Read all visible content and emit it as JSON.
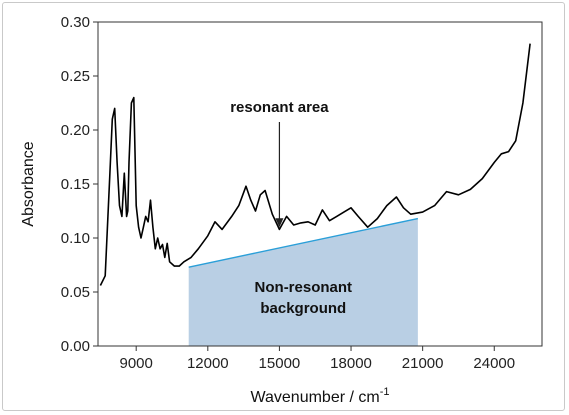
{
  "chart_data": {
    "type": "line",
    "title": "",
    "xlabel": "Wavenumber / cm",
    "xlabel_superscript": "-1",
    "ylabel": "Absorbance",
    "xlim": [
      7400,
      26000
    ],
    "ylim": [
      0,
      0.3
    ],
    "x_ticks": [
      9000,
      12000,
      15000,
      18000,
      21000,
      24000
    ],
    "x_tick_labels": [
      "9000",
      "12000",
      "15000",
      "18000",
      "21000",
      "24000"
    ],
    "y_ticks": [
      0,
      0.05,
      0.1,
      0.15,
      0.2,
      0.25,
      0.3
    ],
    "y_tick_labels": [
      "0.00",
      "0.05",
      "0.10",
      "0.15",
      "0.20",
      "0.25",
      "0.30"
    ],
    "grid": false,
    "series": [
      {
        "color": "#000000",
        "x": [
          7500,
          7700,
          7900,
          8000,
          8100,
          8200,
          8300,
          8400,
          8500,
          8600,
          8650,
          8700,
          8800,
          8900,
          8950,
          9000,
          9100,
          9200,
          9300,
          9400,
          9500,
          9600,
          9700,
          9800,
          9900,
          10000,
          10100,
          10200,
          10300,
          10400,
          10600,
          10800,
          11000,
          11300,
          11600,
          12000,
          12300,
          12600,
          13000,
          13300,
          13600,
          13800,
          14000,
          14200,
          14400,
          14700,
          15000,
          15300,
          15600,
          15900,
          16200,
          16500,
          16800,
          17100,
          17400,
          17700,
          18000,
          18300,
          18700,
          19100,
          19500,
          19900,
          20200,
          20500,
          21000,
          21500,
          22000,
          22500,
          23000,
          23500,
          24000,
          24300,
          24600,
          24900,
          25200,
          25500
        ],
        "y": [
          0.056,
          0.065,
          0.16,
          0.21,
          0.22,
          0.17,
          0.13,
          0.12,
          0.16,
          0.12,
          0.125,
          0.17,
          0.225,
          0.23,
          0.18,
          0.13,
          0.11,
          0.1,
          0.11,
          0.12,
          0.115,
          0.135,
          0.11,
          0.09,
          0.1,
          0.09,
          0.094,
          0.082,
          0.095,
          0.078,
          0.074,
          0.074,
          0.078,
          0.082,
          0.09,
          0.102,
          0.115,
          0.108,
          0.12,
          0.13,
          0.148,
          0.135,
          0.125,
          0.14,
          0.144,
          0.122,
          0.108,
          0.12,
          0.112,
          0.114,
          0.115,
          0.112,
          0.126,
          0.116,
          0.12,
          0.124,
          0.128,
          0.12,
          0.11,
          0.118,
          0.13,
          0.138,
          0.128,
          0.122,
          0.124,
          0.13,
          0.143,
          0.14,
          0.145,
          0.155,
          0.17,
          0.178,
          0.18,
          0.19,
          0.225,
          0.28
        ]
      }
    ],
    "baseline": {
      "color": "#2b9fd8",
      "x": [
        11200,
        20800
      ],
      "y": [
        0.073,
        0.118
      ]
    },
    "shaded_region": {
      "color": "#b9cfe4",
      "label": "Non-resonant background"
    },
    "annotations": [
      {
        "text": "resonant area",
        "arrow_to_x": 15000,
        "arrow_to_y": 0.11,
        "text_x": 15000,
        "text_y": 0.339
      },
      {
        "text_lines": [
          "Non-resonant",
          "background"
        ],
        "x": 16000,
        "y": 0.05
      }
    ]
  }
}
